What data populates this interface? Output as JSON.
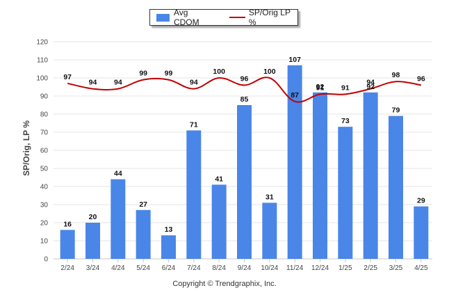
{
  "legend": {
    "bar_label": "Avg CDOM",
    "line_label": "SP/Orig LP %"
  },
  "y_axis_title": "SP/Orig, LP %",
  "footer": "Copyright © Trendgraphix, Inc.",
  "colors": {
    "bar": "#4a86e8",
    "line": "#c00000",
    "grid": "#e6e6e6"
  },
  "chart_data": {
    "type": "bar",
    "categories": [
      "2/24",
      "3/24",
      "4/24",
      "5/24",
      "6/24",
      "7/24",
      "8/24",
      "9/24",
      "10/24",
      "11/24",
      "12/24",
      "1/25",
      "2/25",
      "3/25",
      "4/25"
    ],
    "series": [
      {
        "name": "Avg CDOM",
        "type": "bar",
        "values": [
          16,
          20,
          44,
          27,
          13,
          71,
          41,
          85,
          31,
          107,
          92,
          73,
          92,
          79,
          29
        ]
      },
      {
        "name": "SP/Orig LP %",
        "type": "line",
        "values": [
          97,
          94,
          94,
          99,
          99,
          94,
          100,
          96,
          100,
          87,
          91,
          91,
          94,
          98,
          96
        ]
      }
    ],
    "ylim": [
      0,
      120
    ],
    "yticks": [
      0,
      10,
      20,
      30,
      40,
      50,
      60,
      70,
      80,
      90,
      100,
      110,
      120
    ],
    "ylabel": "SP/Orig, LP %",
    "grid": true,
    "legend_position": "top-center"
  }
}
